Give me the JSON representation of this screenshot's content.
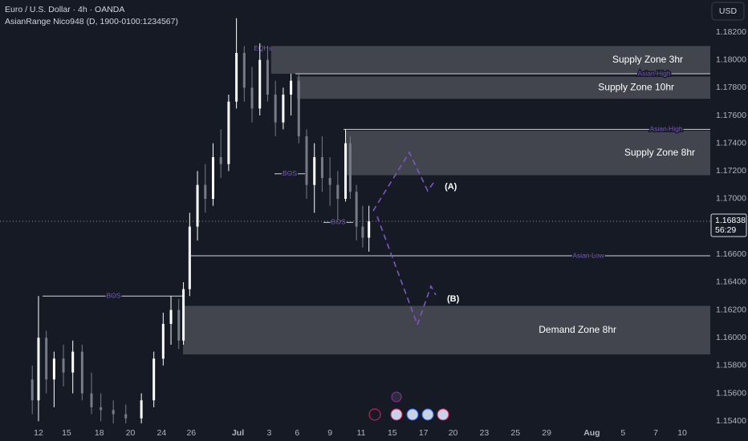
{
  "header": {
    "symbol": "Euro / U.S. Dollar · 4h · OANDA",
    "indicator": "AsianRange Nico948 (D, 1900-0100:1234567)",
    "currency": "USD"
  },
  "chart_data": {
    "type": "candlestick",
    "up_color": "#ffffff",
    "down_color": "#787b86",
    "x": [
      -0.4,
      0,
      0.5,
      1,
      1.6,
      2.2,
      2.8,
      3.4,
      4,
      4.8,
      5.6,
      6.6,
      7.4,
      8,
      8.5,
      9,
      9.3,
      9.7,
      10.2,
      10.7,
      11.2,
      11.7,
      12.2,
      12.7,
      13.2,
      13.7,
      14.2,
      14.7,
      15.2,
      15.7,
      16.2,
      16.7,
      17.2,
      17.7,
      18.2,
      18.7,
      19.2,
      19.7,
      20,
      20.4,
      20.8,
      21.2
    ],
    "open": [
      1.157,
      1.1555,
      1.16,
      1.157,
      1.1585,
      1.1575,
      1.159,
      1.156,
      1.155,
      1.1548,
      1.1545,
      1.1542,
      1.1555,
      1.1585,
      1.161,
      1.162,
      1.1598,
      1.1635,
      1.168,
      1.171,
      1.17,
      1.173,
      1.1725,
      1.177,
      1.1805,
      1.178,
      1.1765,
      1.18,
      1.1775,
      1.1755,
      1.1775,
      1.1785,
      1.1745,
      1.171,
      1.173,
      1.1715,
      1.171,
      1.17,
      1.174,
      1.1705,
      1.168,
      1.1672
    ],
    "high": [
      1.158,
      1.163,
      1.1605,
      1.159,
      1.1595,
      1.1598,
      1.1595,
      1.1575,
      1.156,
      1.1555,
      1.1552,
      1.156,
      1.159,
      1.1618,
      1.163,
      1.1628,
      1.164,
      1.169,
      1.172,
      1.1725,
      1.174,
      1.175,
      1.1775,
      1.183,
      1.181,
      1.1795,
      1.1812,
      1.181,
      1.1785,
      1.178,
      1.179,
      1.179,
      1.175,
      1.174,
      1.1745,
      1.173,
      1.172,
      1.175,
      1.1745,
      1.171,
      1.1695,
      1.1695
    ],
    "low": [
      1.1545,
      1.154,
      1.156,
      1.155,
      1.1565,
      1.156,
      1.1555,
      1.1545,
      1.154,
      1.1538,
      1.1535,
      1.1538,
      1.155,
      1.158,
      1.1595,
      1.1592,
      1.1595,
      1.163,
      1.167,
      1.169,
      1.1695,
      1.1715,
      1.172,
      1.1765,
      1.177,
      1.1755,
      1.176,
      1.177,
      1.1745,
      1.175,
      1.176,
      1.174,
      1.17,
      1.169,
      1.1705,
      1.1695,
      1.1685,
      1.1698,
      1.17,
      1.167,
      1.1665,
      1.1662
    ],
    "close": [
      1.1555,
      1.16,
      1.157,
      1.1585,
      1.1575,
      1.159,
      1.156,
      1.155,
      1.1548,
      1.1545,
      1.1542,
      1.1555,
      1.1585,
      1.161,
      1.162,
      1.1598,
      1.1635,
      1.168,
      1.171,
      1.17,
      1.173,
      1.1725,
      1.177,
      1.1805,
      1.178,
      1.1765,
      1.18,
      1.1775,
      1.1755,
      1.1775,
      1.1785,
      1.1745,
      1.171,
      1.173,
      1.1715,
      1.171,
      1.17,
      1.174,
      1.1705,
      1.168,
      1.1672,
      1.16838
    ],
    "xlim": [
      -2.47,
      43.1
    ],
    "ylim": [
      1.15257,
      1.18431
    ],
    "xticks": [
      {
        "value": 0,
        "label": "12"
      },
      {
        "value": 1.8,
        "label": "15"
      },
      {
        "value": 3.9,
        "label": "18"
      },
      {
        "value": 5.9,
        "label": "20"
      },
      {
        "value": 7.9,
        "label": "24"
      },
      {
        "value": 9.8,
        "label": "26"
      },
      {
        "value": 12.8,
        "label": "Jul"
      },
      {
        "value": 14.8,
        "label": "3"
      },
      {
        "value": 16.6,
        "label": "6"
      },
      {
        "value": 18.7,
        "label": "9"
      },
      {
        "value": 20.7,
        "label": "11"
      },
      {
        "value": 22.7,
        "label": "15"
      },
      {
        "value": 24.7,
        "label": "17"
      },
      {
        "value": 26.6,
        "label": "20"
      },
      {
        "value": 28.6,
        "label": "23"
      },
      {
        "value": 30.6,
        "label": "25"
      },
      {
        "value": 32.6,
        "label": "29"
      },
      {
        "value": 35.5,
        "label": "Aug"
      },
      {
        "value": 37.5,
        "label": "5"
      },
      {
        "value": 39.6,
        "label": "7"
      },
      {
        "value": 41.3,
        "label": "10"
      }
    ],
    "yticks": [
      {
        "value": 1.182,
        "label": "1.18200"
      },
      {
        "value": 1.18,
        "label": "1.18000"
      },
      {
        "value": 1.178,
        "label": "1.17800"
      },
      {
        "value": 1.176,
        "label": "1.17600"
      },
      {
        "value": 1.174,
        "label": "1.17400"
      },
      {
        "value": 1.172,
        "label": "1.17200"
      },
      {
        "value": 1.17,
        "label": "1.17000"
      },
      {
        "value": 1.166,
        "label": "1.16600"
      },
      {
        "value": 1.164,
        "label": "1.16400"
      },
      {
        "value": 1.162,
        "label": "1.16200"
      },
      {
        "value": 1.16,
        "label": "1.16000"
      },
      {
        "value": 1.158,
        "label": "1.15800"
      },
      {
        "value": 1.156,
        "label": "1.15600"
      },
      {
        "value": 1.154,
        "label": "1.15400"
      }
    ],
    "last_price": 1.16838,
    "countdown": "56:29",
    "zones": [
      {
        "label": "Supply Zone 3hr",
        "x0": 14.93,
        "top": 1.181,
        "bottom": 1.179
      },
      {
        "label": "Supply Zone 10hr",
        "x0": 16.58,
        "top": 1.1788,
        "bottom": 1.1772
      },
      {
        "label": "Supply Zone 8hr",
        "x0": 19.67,
        "top": 1.1749,
        "bottom": 1.1717
      },
      {
        "label": "Demand Zone 8hr",
        "x0": 9.27,
        "top": 1.1623,
        "bottom": 1.1588
      }
    ],
    "levels": [
      {
        "label": "Asian High",
        "x0": 16.48,
        "x1": 43.1,
        "value": 1.179
      },
      {
        "label": "Asian High",
        "x0": 19.57,
        "x1": 43.1,
        "value": 1.175
      },
      {
        "label": "Asian Low",
        "x0": 9.78,
        "x1": 43.1,
        "value": 1.1659
      },
      {
        "label": "BOS",
        "x0": 0.26,
        "x1": 9.37,
        "value": 1.163
      },
      {
        "label": "BOS",
        "x0": 15.14,
        "x1": 17.1,
        "value": 1.1718
      },
      {
        "label": "BOS",
        "x0": 18.28,
        "x1": 20.19,
        "value": 1.1683
      }
    ],
    "eqh": {
      "label": "EQHs",
      "x": 14.4,
      "value": 1.1808
    },
    "projections": [
      {
        "label": "(A)",
        "x": [
          21.47,
          23.79,
          24.97,
          25.34
        ],
        "values": [
          1.16913,
          1.17334,
          1.17058,
          1.17115
        ]
      },
      {
        "label": "(B)",
        "x": [
          21.73,
          24.31,
          25.18,
          25.49
        ],
        "values": [
          1.16873,
          1.16094,
          1.16371,
          1.16308
        ]
      }
    ]
  }
}
